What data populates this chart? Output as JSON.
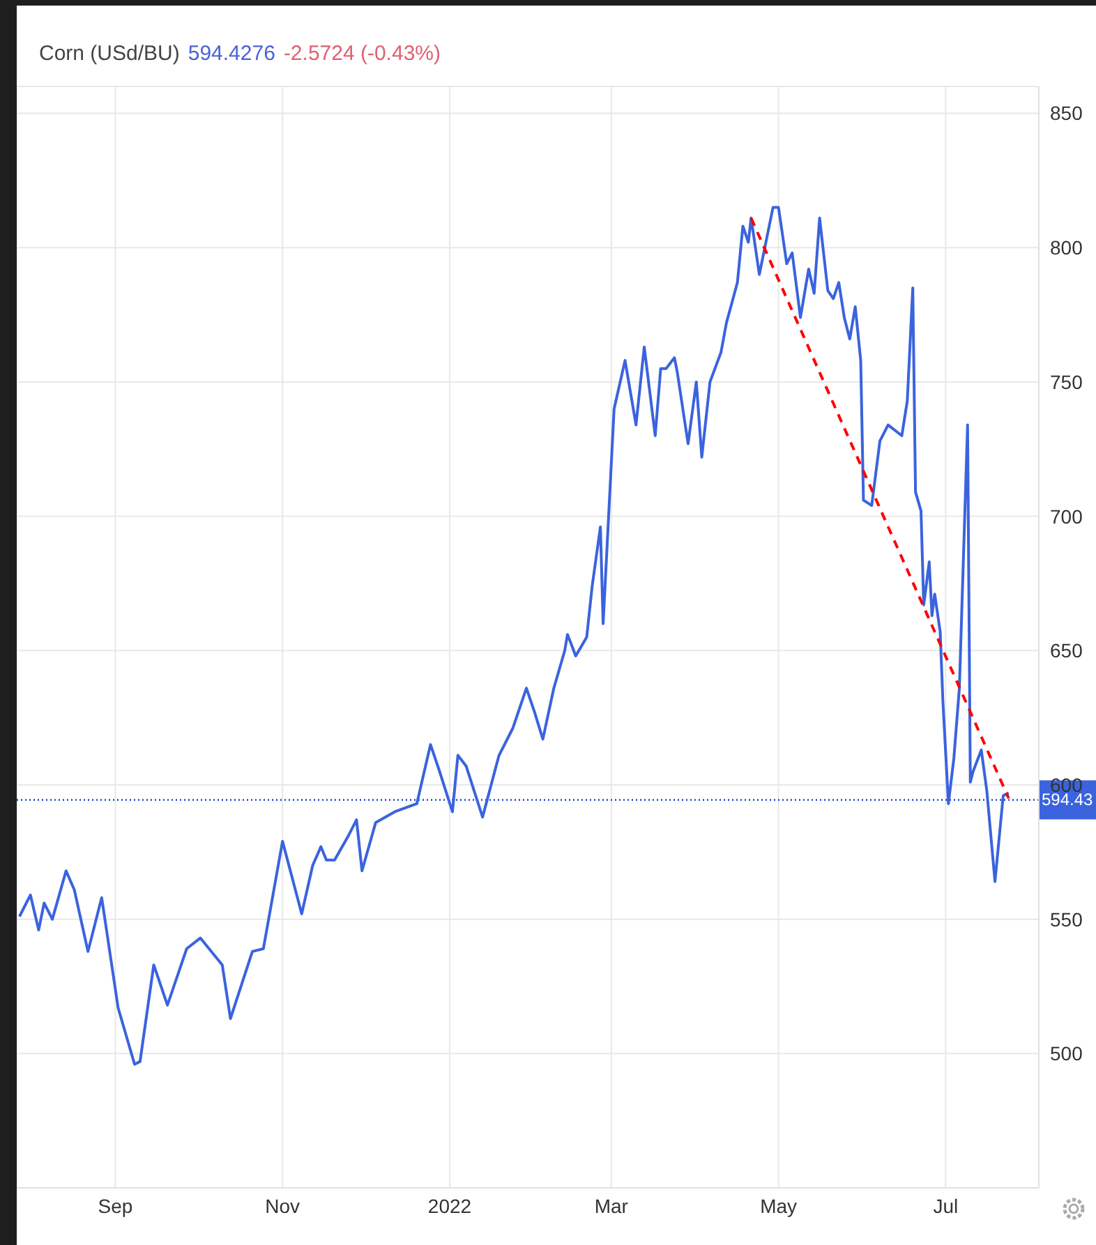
{
  "chart_data": {
    "type": "line",
    "title": "Corn (USd/BU)",
    "annotations": [
      "594.4276",
      "-2.5724 (-0.43%)"
    ],
    "x": [
      "2021-07-28",
      "2021-08-01",
      "2021-08-04",
      "2021-08-06",
      "2021-08-09",
      "2021-08-14",
      "2021-08-17",
      "2021-08-22",
      "2021-08-27",
      "2021-09-02",
      "2021-09-08",
      "2021-09-10",
      "2021-09-15",
      "2021-09-20",
      "2021-09-27",
      "2021-10-02",
      "2021-10-10",
      "2021-10-13",
      "2021-10-21",
      "2021-10-25",
      "2021-11-01",
      "2021-11-08",
      "2021-11-12",
      "2021-11-15",
      "2021-11-17",
      "2021-11-20",
      "2021-11-25",
      "2021-11-28",
      "2021-11-30",
      "2021-12-05",
      "2021-12-12",
      "2021-12-20",
      "2021-12-25",
      "2021-12-28",
      "2022-01-02",
      "2022-01-04",
      "2022-01-07",
      "2022-01-13",
      "2022-01-19",
      "2022-01-24",
      "2022-01-29",
      "2022-02-01",
      "2022-02-04",
      "2022-02-08",
      "2022-02-12",
      "2022-02-13",
      "2022-02-16",
      "2022-02-20",
      "2022-02-22",
      "2022-02-25",
      "2022-02-26",
      "2022-03-02",
      "2022-03-06",
      "2022-03-10",
      "2022-03-13",
      "2022-03-17",
      "2022-03-19",
      "2022-03-21",
      "2022-03-24",
      "2022-03-25",
      "2022-03-29",
      "2022-04-01",
      "2022-04-03",
      "2022-04-06",
      "2022-04-10",
      "2022-04-12",
      "2022-04-16",
      "2022-04-18",
      "2022-04-20",
      "2022-04-21",
      "2022-04-24",
      "2022-04-26",
      "2022-04-29",
      "2022-05-01",
      "2022-05-04",
      "2022-05-06",
      "2022-05-09",
      "2022-05-12",
      "2022-05-14",
      "2022-05-16",
      "2022-05-19",
      "2022-05-21",
      "2022-05-23",
      "2022-05-25",
      "2022-05-27",
      "2022-05-29",
      "2022-05-31",
      "2022-06-01",
      "2022-06-04",
      "2022-06-07",
      "2022-06-10",
      "2022-06-15",
      "2022-06-17",
      "2022-06-19",
      "2022-06-20",
      "2022-06-22",
      "2022-06-23",
      "2022-06-25",
      "2022-06-26",
      "2022-06-27",
      "2022-06-29",
      "2022-06-30",
      "2022-07-02",
      "2022-07-04",
      "2022-07-06",
      "2022-07-09",
      "2022-07-10",
      "2022-07-11",
      "2022-07-14",
      "2022-07-16",
      "2022-07-19",
      "2022-07-22",
      "2022-07-24"
    ],
    "series": [
      {
        "color": "#3b63de",
        "values": [
          551,
          559,
          546,
          556,
          550,
          568,
          561,
          538,
          558,
          517,
          496,
          497,
          533,
          518,
          539,
          543,
          533,
          513,
          538,
          539,
          579,
          552,
          570,
          577,
          572,
          572,
          581,
          587,
          568,
          586,
          590,
          593,
          615,
          606,
          590,
          611,
          607,
          588,
          611,
          621,
          636,
          627,
          617,
          636,
          650,
          656,
          648,
          655,
          674,
          696,
          660,
          740,
          758,
          734,
          763,
          730,
          755,
          755,
          759,
          754,
          727,
          750,
          722,
          750,
          761,
          772,
          787,
          808,
          802,
          811,
          790,
          800,
          815,
          815,
          794,
          798,
          774,
          792,
          783,
          811,
          784,
          781,
          787,
          774,
          766,
          778,
          758,
          706,
          704,
          728,
          734,
          730,
          743,
          785,
          709,
          702,
          667,
          683,
          663,
          671,
          657,
          631,
          593,
          610,
          636,
          734,
          601,
          605,
          613,
          598,
          564,
          596,
          597
        ]
      },
      {
        "type": "line",
        "color": "#ff0000",
        "line_style": "dashed",
        "x": [
          "2022-04-21",
          "2022-07-24"
        ],
        "values": [
          811,
          595
        ]
      }
    ],
    "xlim": [
      "2021-07-27",
      "2022-08-04"
    ],
    "xticks": [
      {
        "value": "2021-09-01",
        "label": "Sep"
      },
      {
        "value": "2021-11-01",
        "label": "Nov"
      },
      {
        "value": "2022-01-01",
        "label": "2022"
      },
      {
        "value": "2022-03-01",
        "label": "Mar"
      },
      {
        "value": "2022-05-01",
        "label": "May"
      },
      {
        "value": "2022-07-01",
        "label": "Jul"
      }
    ],
    "ylim": [
      450,
      860
    ],
    "yticks": [
      500,
      550,
      600,
      650,
      700,
      750,
      800,
      850
    ],
    "ref_lines": [
      {
        "axis": "y",
        "value": 594.43,
        "label": "594.43",
        "color": "#3b63de",
        "line_style": "dotted"
      }
    ],
    "grid": true,
    "marker": "none",
    "line_style": "solid"
  }
}
